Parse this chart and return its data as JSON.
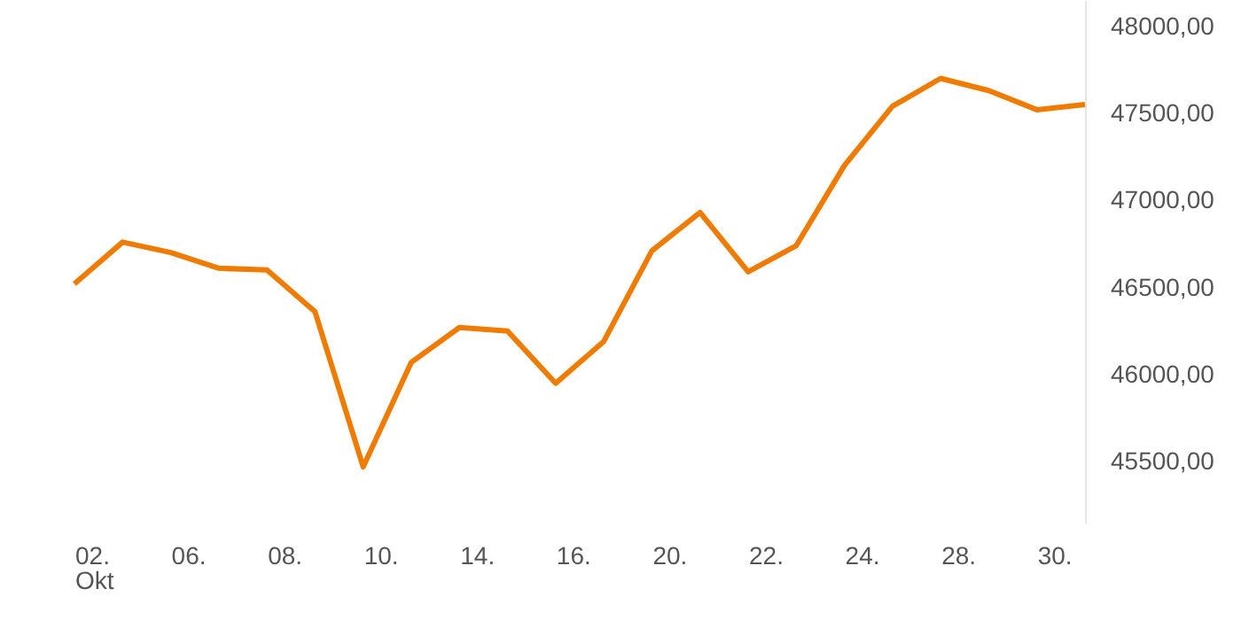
{
  "chart_data": {
    "type": "line",
    "categories": [
      "02.",
      null,
      "06.",
      null,
      "08.",
      null,
      "10.",
      null,
      "14.",
      null,
      "16.",
      null,
      "20.",
      null,
      "22.",
      null,
      "24.",
      null,
      "28.",
      null,
      "30.",
      null
    ],
    "xlabel": "Okt",
    "series": [
      {
        "color": "#ef7b00",
        "values": [
          46520,
          46760,
          46700,
          46610,
          46600,
          46360,
          45470,
          46070,
          46270,
          46250,
          45950,
          46190,
          46710,
          46930,
          46590,
          46740,
          47200,
          47540,
          47700,
          47630,
          47520,
          47550
        ]
      }
    ],
    "ylim": [
      45150,
      48150
    ],
    "yticks": [
      {
        "value": 45500,
        "label": "45500,00"
      },
      {
        "value": 46000,
        "label": "46000,00"
      },
      {
        "value": 46500,
        "label": "46500,00"
      },
      {
        "value": 47000,
        "label": "47000,00"
      },
      {
        "value": 47500,
        "label": "47500,00"
      },
      {
        "value": 48000,
        "label": "48000,00"
      }
    ],
    "grid": false,
    "marker": "none",
    "line_style": "solid"
  }
}
